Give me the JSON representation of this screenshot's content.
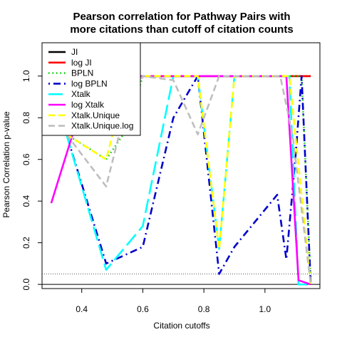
{
  "chart_data": {
    "type": "line",
    "title_lines": [
      "Pearson correlation for Pathway Pairs with",
      "more citations than cutoff of citation counts"
    ],
    "xlabel": "Citation cutoffs",
    "ylabel": "Pearson Correlation p-value",
    "xlim": [
      0.27,
      1.18
    ],
    "ylim": [
      -0.02,
      1.16
    ],
    "xticks": [
      0.4,
      0.6,
      0.8,
      1.0
    ],
    "xtick_labels": [
      "0.4",
      "0.6",
      "0.8",
      "1.0"
    ],
    "yticks": [
      0.0,
      0.2,
      0.4,
      0.6,
      0.8,
      1.0
    ],
    "ytick_labels": [
      "0.0",
      "0.2",
      "0.4",
      "0.6",
      "0.8",
      "1.0"
    ],
    "reference_lines": [
      {
        "y": 0.05,
        "style": "dotted",
        "color": "#555555"
      },
      {
        "y": 0.0,
        "style": "solid",
        "color": "#000000"
      }
    ],
    "legend_position": "top-left",
    "series": [
      {
        "name": "JI",
        "color": "#000000",
        "dash": "solid",
        "x": [
          0.3,
          0.35,
          0.48,
          0.55,
          0.6,
          0.7,
          0.78,
          0.85,
          0.9,
          1.0,
          1.08,
          1.12,
          1.15
        ],
        "y": [
          1.0,
          1.0,
          1.0,
          1.0,
          1.0,
          1.0,
          1.0,
          1.0,
          1.0,
          1.0,
          1.0,
          1.0,
          1.0
        ]
      },
      {
        "name": "log JI",
        "color": "#ff0000",
        "dash": "solid",
        "x": [
          0.3,
          0.35,
          0.48,
          0.55,
          0.6,
          0.7,
          0.78,
          0.85,
          0.9,
          1.0,
          1.08,
          1.12,
          1.15
        ],
        "y": [
          1.0,
          1.0,
          1.0,
          1.0,
          1.0,
          1.0,
          1.0,
          1.0,
          1.0,
          1.0,
          1.0,
          1.0,
          1.0
        ]
      },
      {
        "name": "BPLN",
        "color": "#00cd00",
        "dash": "dotted",
        "x": [
          0.35,
          0.48,
          0.55,
          0.6,
          0.7,
          0.78,
          0.85,
          0.9,
          1.0,
          1.08,
          1.12,
          1.15
        ],
        "y": [
          0.72,
          0.6,
          0.75,
          1.0,
          1.0,
          1.0,
          1.0,
          1.0,
          1.0,
          1.0,
          1.0,
          0.01
        ]
      },
      {
        "name": "log BPLN",
        "color": "#0000cd",
        "dash": "dotdash",
        "x": [
          0.35,
          0.48,
          0.6,
          0.7,
          0.78,
          0.85,
          0.9,
          1.04,
          1.07,
          1.1,
          1.12,
          1.15
        ],
        "y": [
          0.72,
          0.1,
          0.18,
          0.8,
          1.0,
          0.05,
          0.18,
          0.43,
          0.12,
          0.61,
          1.0,
          0.0
        ]
      },
      {
        "name": "Xtalk",
        "color": "#00ffff",
        "dash": "longdash",
        "x": [
          0.35,
          0.48,
          0.6,
          0.7,
          0.78,
          0.85,
          0.9,
          1.0,
          1.08,
          1.11,
          1.15
        ],
        "y": [
          0.72,
          0.07,
          0.28,
          1.0,
          1.0,
          0.17,
          1.0,
          1.0,
          1.0,
          0.0,
          0.0
        ]
      },
      {
        "name": "log Xtalk",
        "color": "#ff00ff",
        "dash": "solid",
        "x": [
          0.3,
          0.37,
          0.4,
          0.55,
          0.6,
          0.7,
          0.78,
          0.85,
          0.9,
          1.0,
          1.07,
          1.11,
          1.15
        ],
        "y": [
          0.39,
          0.72,
          1.0,
          1.0,
          1.0,
          1.0,
          1.0,
          1.0,
          1.0,
          1.0,
          1.0,
          0.02,
          0.0
        ]
      },
      {
        "name": "Xtalk.Unique",
        "color": "#ffff00",
        "dash": "dashed",
        "x": [
          0.35,
          0.48,
          0.55,
          0.6,
          0.7,
          0.78,
          0.85,
          0.9,
          1.0,
          1.08,
          1.15
        ],
        "y": [
          0.72,
          0.6,
          1.0,
          1.0,
          1.0,
          1.0,
          0.17,
          1.0,
          1.0,
          1.0,
          0.0
        ]
      },
      {
        "name": "Xtalk.Unique.log",
        "color": "#bebebe",
        "dash": "dashed",
        "x": [
          0.35,
          0.48,
          0.55,
          0.6,
          0.7,
          0.78,
          0.85,
          0.9,
          1.0,
          1.05,
          1.09,
          1.15
        ],
        "y": [
          0.72,
          0.47,
          0.88,
          1.0,
          0.98,
          0.72,
          1.0,
          1.0,
          1.0,
          1.0,
          0.72,
          0.0
        ]
      }
    ]
  }
}
